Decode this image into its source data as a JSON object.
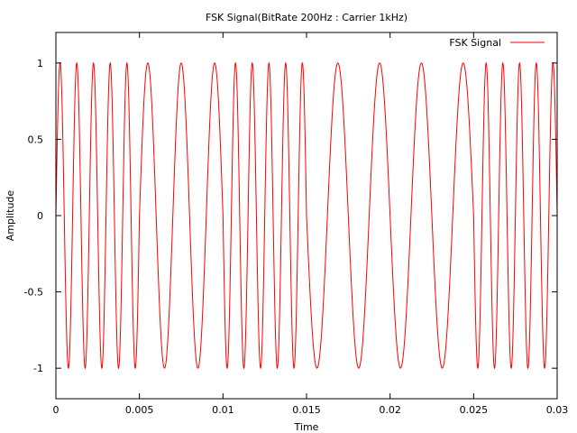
{
  "chart_data": {
    "type": "line",
    "title": "FSK Signal(BitRate 200Hz : Carrier 1kHz)",
    "xlabel": "Time",
    "ylabel": "Amplitude",
    "xlim": [
      0,
      0.03
    ],
    "ylim": [
      -1.2,
      1.2
    ],
    "x_ticks": [
      0,
      0.005,
      0.01,
      0.015,
      0.02,
      0.025,
      0.03
    ],
    "x_tick_labels": [
      "0",
      "0.005",
      "0.01",
      "0.015",
      "0.02",
      "0.025",
      "0.03"
    ],
    "y_ticks": [
      -1,
      -0.5,
      0,
      0.5,
      1
    ],
    "y_tick_labels": [
      "-1",
      "-0.5",
      "0",
      "0.5",
      "1"
    ],
    "grid": false,
    "legend_position": "top-right",
    "series": [
      {
        "name": "FSK Signal",
        "color": "#ff0000",
        "segments": [
          {
            "x_start": 0.0,
            "x_end": 0.005,
            "frequency_hz": 1000
          },
          {
            "x_start": 0.005,
            "x_end": 0.01,
            "frequency_hz": 500
          },
          {
            "x_start": 0.01,
            "x_end": 0.015,
            "frequency_hz": 1000
          },
          {
            "x_start": 0.015,
            "x_end": 0.025,
            "frequency_hz": 400
          },
          {
            "x_start": 0.025,
            "x_end": 0.03,
            "frequency_hz": 1000
          }
        ]
      }
    ]
  }
}
